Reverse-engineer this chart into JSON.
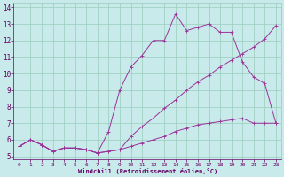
{
  "bg_color": "#c8eaea",
  "line_color": "#993399",
  "grid_color": "#99ccbb",
  "xlabel": "Windchill (Refroidissement éolien,°C)",
  "xlabel_color": "#660066",
  "tick_color": "#660066",
  "xlim": [
    -0.5,
    23.5
  ],
  "ylim": [
    4.8,
    14.3
  ],
  "yticks": [
    5,
    6,
    7,
    8,
    9,
    10,
    11,
    12,
    13,
    14
  ],
  "xticks": [
    0,
    1,
    2,
    3,
    4,
    5,
    6,
    7,
    8,
    9,
    10,
    11,
    12,
    13,
    14,
    15,
    16,
    17,
    18,
    19,
    20,
    21,
    22,
    23
  ],
  "line1_x": [
    0,
    1,
    2,
    3,
    4,
    5,
    6,
    7,
    8,
    9,
    10,
    11,
    12,
    13,
    14,
    15,
    16,
    17,
    18,
    19,
    20,
    21,
    22,
    23
  ],
  "line1_y": [
    5.6,
    6.0,
    5.7,
    5.3,
    5.5,
    5.5,
    5.4,
    5.2,
    5.3,
    5.4,
    6.2,
    6.8,
    7.3,
    7.9,
    8.4,
    9.0,
    9.5,
    9.9,
    10.4,
    10.8,
    11.2,
    11.6,
    12.1,
    12.9
  ],
  "line2_x": [
    0,
    1,
    2,
    3,
    4,
    5,
    6,
    7,
    8,
    9,
    10,
    11,
    12,
    13,
    14,
    15,
    16,
    17,
    18,
    19,
    20,
    21,
    22,
    23
  ],
  "line2_y": [
    5.6,
    6.0,
    5.7,
    5.3,
    5.5,
    5.5,
    5.4,
    5.2,
    6.5,
    9.0,
    10.4,
    11.1,
    12.0,
    12.0,
    13.6,
    12.6,
    12.8,
    13.0,
    12.5,
    12.5,
    10.7,
    9.8,
    9.4,
    7.0
  ],
  "line3_x": [
    0,
    1,
    2,
    3,
    4,
    5,
    6,
    7,
    8,
    9,
    10,
    11,
    12,
    13,
    14,
    15,
    16,
    17,
    18,
    19,
    20,
    21,
    22,
    23
  ],
  "line3_y": [
    5.6,
    6.0,
    5.7,
    5.3,
    5.5,
    5.5,
    5.4,
    5.2,
    5.3,
    5.4,
    5.6,
    5.8,
    6.0,
    6.2,
    6.5,
    6.7,
    6.9,
    7.0,
    7.1,
    7.2,
    7.3,
    7.0,
    7.0,
    7.0
  ],
  "markersize": 2.5,
  "linewidth": 0.7
}
